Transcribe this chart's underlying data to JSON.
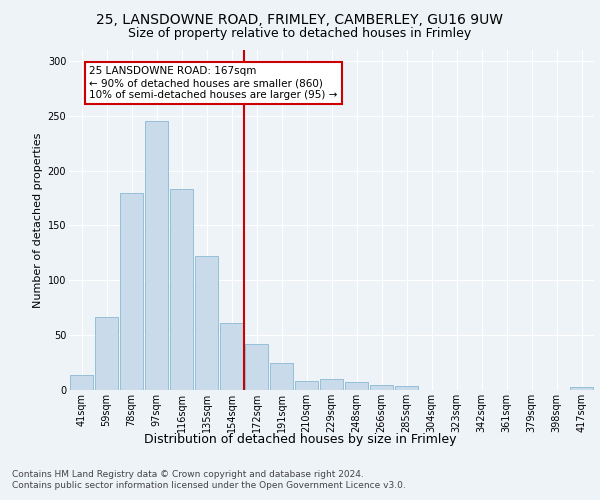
{
  "title1": "25, LANSDOWNE ROAD, FRIMLEY, CAMBERLEY, GU16 9UW",
  "title2": "Size of property relative to detached houses in Frimley",
  "xlabel": "Distribution of detached houses by size in Frimley",
  "ylabel": "Number of detached properties",
  "categories": [
    "41sqm",
    "59sqm",
    "78sqm",
    "97sqm",
    "116sqm",
    "135sqm",
    "154sqm",
    "172sqm",
    "191sqm",
    "210sqm",
    "229sqm",
    "248sqm",
    "266sqm",
    "285sqm",
    "304sqm",
    "323sqm",
    "342sqm",
    "361sqm",
    "379sqm",
    "398sqm",
    "417sqm"
  ],
  "values": [
    14,
    67,
    180,
    245,
    183,
    122,
    61,
    42,
    25,
    8,
    10,
    7,
    5,
    4,
    0,
    0,
    0,
    0,
    0,
    0,
    3
  ],
  "bar_color": "#c9daea",
  "bar_edge_color": "#89b8d4",
  "annotation_text": "25 LANSDOWNE ROAD: 167sqm\n← 90% of detached houses are smaller (860)\n10% of semi-detached houses are larger (95) →",
  "annotation_box_color": "#ffffff",
  "annotation_box_edge": "#cc0000",
  "vline_color": "#cc0000",
  "vline_x_index": 6.5,
  "footer1": "Contains HM Land Registry data © Crown copyright and database right 2024.",
  "footer2": "Contains public sector information licensed under the Open Government Licence v3.0.",
  "ylim": [
    0,
    310
  ],
  "yticks": [
    0,
    50,
    100,
    150,
    200,
    250,
    300
  ],
  "bg_color": "#eef3f8",
  "grid_color": "#ffffff",
  "title1_fontsize": 10,
  "title2_fontsize": 9,
  "xlabel_fontsize": 9,
  "ylabel_fontsize": 8,
  "tick_fontsize": 7,
  "footer_fontsize": 6.5,
  "annotation_fontsize": 7.5
}
